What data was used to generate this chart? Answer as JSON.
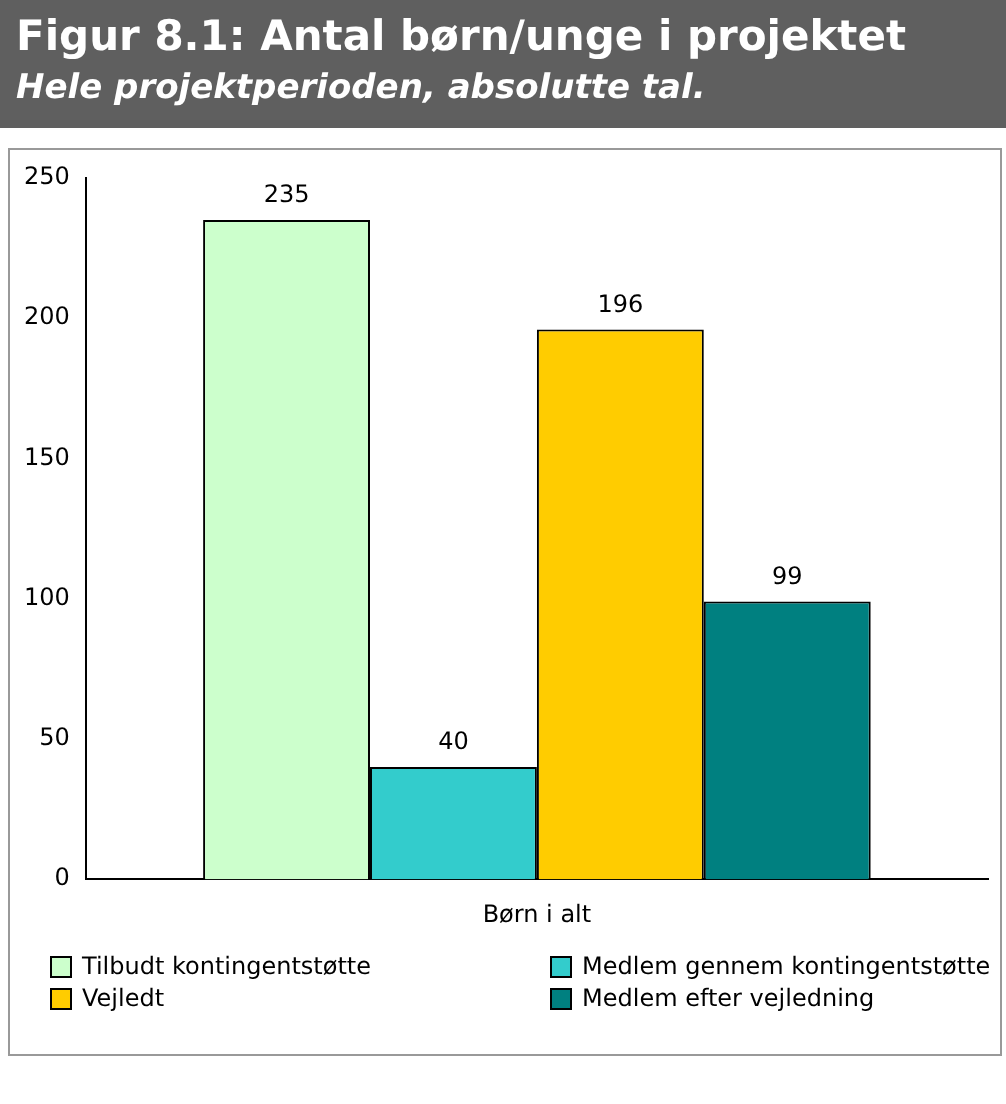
{
  "chart_data": {
    "type": "bar",
    "title": "Figur 8.1: Antal børn/unge i projektet",
    "subtitle": "Hele projektperioden, absolutte tal.",
    "categories": [
      "Børn i alt"
    ],
    "series": [
      {
        "name": "Tilbudt kontingentstøtte",
        "color": "#ccffcc",
        "values": [
          235
        ]
      },
      {
        "name": "Medlem gennem kontingentstøtte",
        "color": "#33cccc",
        "values": [
          40
        ]
      },
      {
        "name": "Vejledt",
        "color": "#ffcc00",
        "values": [
          196
        ]
      },
      {
        "name": "Medlem efter vejledning",
        "color": "#008080",
        "values": [
          99
        ]
      }
    ],
    "ylim": [
      0,
      250
    ],
    "yticks": [
      0,
      50,
      100,
      150,
      200,
      250
    ],
    "grid": false,
    "legend": "bottom",
    "data_labels": true
  }
}
